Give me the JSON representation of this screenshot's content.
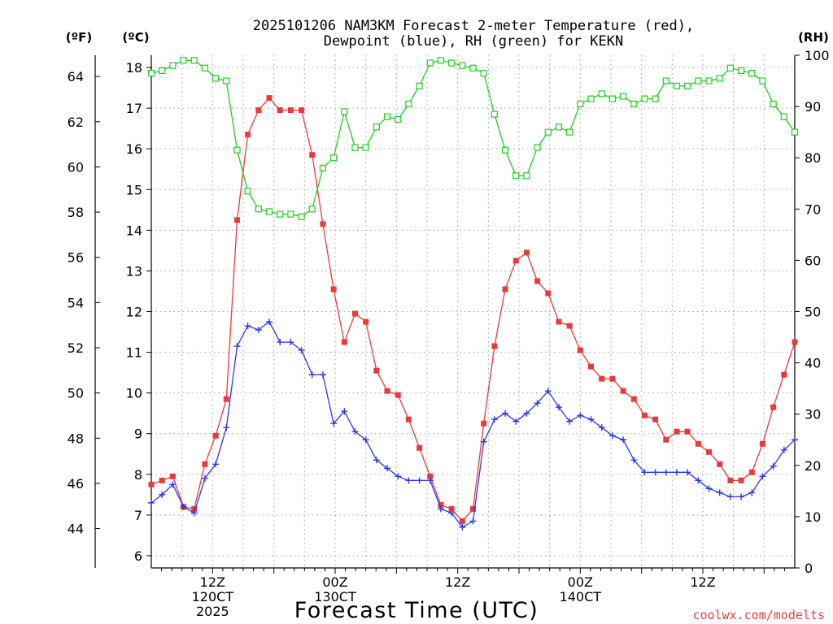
{
  "chart_data": {
    "type": "line",
    "title_line1": "2025101206 NAM3KM Forecast 2-meter Temperature (red),",
    "title_line2": "Dewpoint (blue), RH (green) for KEKN",
    "xlabel": "Forecast Time (UTC)",
    "watermark": "coolwx.com/modelts",
    "axis_labels": {
      "fahrenheit": "(ºF)",
      "celsius": "(ºC)",
      "rh": "(RH)"
    },
    "xlim": [
      0,
      63
    ],
    "celsius_range": [
      5.7,
      18.3
    ],
    "rh_range": [
      0,
      100
    ],
    "celsius_ticks": [
      "6",
      "7",
      "8",
      "9",
      "10",
      "11",
      "12",
      "13",
      "14",
      "15",
      "16",
      "17",
      "18"
    ],
    "fahrenheit_ticks": [
      "44",
      "46",
      "48",
      "50",
      "52",
      "54",
      "56",
      "58",
      "60",
      "62",
      "64"
    ],
    "rh_ticks": [
      "0",
      "10",
      "20",
      "30",
      "40",
      "50",
      "60",
      "70",
      "80",
      "90",
      "100"
    ],
    "x_ticks": [
      {
        "hour": 6,
        "lines": [
          "12Z",
          "120CT",
          "2025"
        ]
      },
      {
        "hour": 18,
        "lines": [
          "00Z",
          "130CT"
        ]
      },
      {
        "hour": 30,
        "lines": [
          "12Z"
        ]
      },
      {
        "hour": 42,
        "lines": [
          "00Z",
          "140CT"
        ]
      },
      {
        "hour": 54,
        "lines": [
          "12Z"
        ]
      }
    ],
    "colors": {
      "temperature": "#e83a3a",
      "dewpoint": "#2a3ae8",
      "rh": "#22cc22",
      "grid": "#a0a0a0",
      "axis": "#000000"
    },
    "series": [
      {
        "name": "Temperature (°C)",
        "color": "#e83a3a",
        "marker": "square",
        "values": [
          7.75,
          7.85,
          7.95,
          7.2,
          7.15,
          8.25,
          8.95,
          9.85,
          14.25,
          16.35,
          16.95,
          17.25,
          16.95,
          16.95,
          16.95,
          15.85,
          14.15,
          12.55,
          11.25,
          11.95,
          11.75,
          10.55,
          10.05,
          9.95,
          9.35,
          8.65,
          7.95,
          7.25,
          7.15,
          6.85,
          7.15,
          9.25,
          11.15,
          12.55,
          13.25,
          13.45,
          12.75,
          12.45,
          11.75,
          11.65,
          11.05,
          10.65,
          10.35,
          10.35,
          10.05,
          9.85,
          9.45,
          9.35,
          8.85,
          9.05,
          9.05,
          8.75,
          8.55,
          8.25,
          7.85,
          7.85,
          8.05,
          8.75,
          9.65,
          10.45,
          11.25
        ]
      },
      {
        "name": "Dewpoint (°C)",
        "color": "#2a3ae8",
        "marker": "plus",
        "values": [
          7.3,
          7.5,
          7.75,
          7.2,
          7.05,
          7.9,
          8.25,
          9.15,
          11.15,
          11.65,
          11.55,
          11.75,
          11.25,
          11.25,
          11.05,
          10.45,
          10.45,
          9.25,
          9.55,
          9.05,
          8.85,
          8.35,
          8.15,
          7.95,
          7.85,
          7.85,
          7.85,
          7.15,
          7.05,
          6.7,
          6.85,
          8.8,
          9.35,
          9.5,
          9.3,
          9.5,
          9.75,
          10.05,
          9.65,
          9.3,
          9.45,
          9.35,
          9.15,
          8.95,
          8.85,
          8.35,
          8.05,
          8.05,
          8.05,
          8.05,
          8.05,
          7.85,
          7.65,
          7.55,
          7.45,
          7.45,
          7.55,
          7.95,
          8.2,
          8.6,
          8.85
        ]
      },
      {
        "name": "RH (%)",
        "color": "#22cc22",
        "marker": "hollow-square",
        "values": [
          96.5,
          97,
          98,
          99,
          99,
          97.5,
          95.5,
          95,
          81.5,
          73.5,
          70,
          69.5,
          69,
          69,
          68.5,
          70,
          78,
          80,
          89,
          82,
          82,
          86,
          88,
          87.5,
          90.5,
          94,
          98.5,
          99,
          98.5,
          98,
          97.5,
          96.5,
          88.5,
          81.5,
          76.5,
          76.5,
          82,
          85,
          86,
          85,
          90.5,
          91.5,
          92.5,
          91.5,
          92,
          90.5,
          91.5,
          91.5,
          95,
          94,
          94,
          95,
          95,
          95.5,
          97.5,
          97,
          96.5,
          95,
          90.5,
          88,
          85
        ]
      }
    ]
  }
}
